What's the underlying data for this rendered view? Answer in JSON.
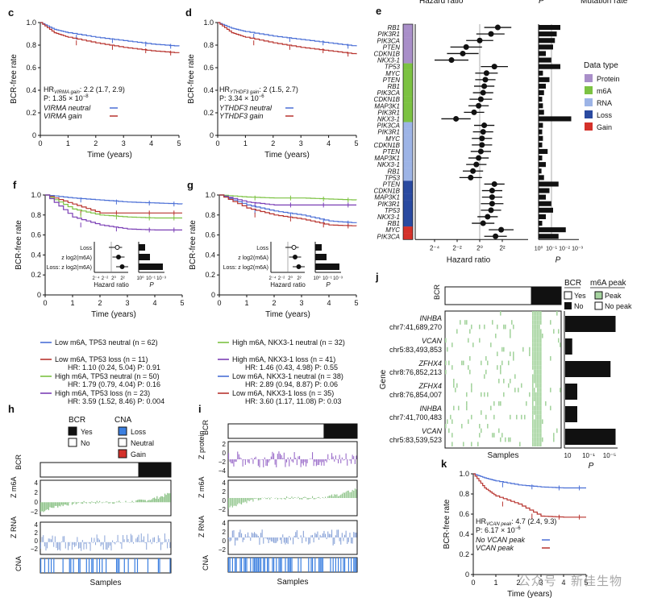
{
  "colors": {
    "blue": "#4a6fd6",
    "red": "#b8342f",
    "green": "#7cc242",
    "purple": "#7b3fb5",
    "lightgreen": "#a6d4a0",
    "lightblue": "#9db4e6",
    "darkblue": "#2a4aa0",
    "pos": "#000000"
  },
  "panels": {
    "c": {
      "label": "c",
      "xlabel": "Time (years)",
      "ylabel": "BCR-free rate",
      "xticks": [
        "0",
        "1",
        "2",
        "3",
        "4",
        "5"
      ],
      "yticks": [
        "1.0",
        "0.8",
        "0.6",
        "0.4",
        "0.2",
        "0"
      ],
      "hr_line": "HR",
      "hr_sub": "VIRMA gain",
      "hr_val": ": 2.2 (1.7, 2.9)",
      "p_line": "P: 1.35 × 10",
      "p_exp": "−8",
      "legend": [
        "VIRMA neutral",
        "VIRMA gain"
      ],
      "chart_data": {
        "type": "line",
        "series": [
          {
            "name": "VIRMA neutral",
            "x": [
              0,
              0.5,
              1,
              2,
              3,
              4,
              5
            ],
            "y": [
              1.0,
              0.94,
              0.91,
              0.87,
              0.84,
              0.81,
              0.79
            ]
          },
          {
            "name": "VIRMA gain",
            "x": [
              0,
              0.5,
              1,
              2,
              3,
              4,
              5
            ],
            "y": [
              1.0,
              0.91,
              0.87,
              0.82,
              0.78,
              0.75,
              0.73
            ]
          }
        ]
      }
    },
    "d": {
      "label": "d",
      "xlabel": "Time (years)",
      "ylabel": "BCR-free rate",
      "xticks": [
        "0",
        "1",
        "2",
        "3",
        "4",
        "5"
      ],
      "yticks": [
        "1.0",
        "0.8",
        "0.6",
        "0.4",
        "0.2",
        "0"
      ],
      "hr_line": "HR",
      "hr_sub": "YTHDF3 gain",
      "hr_val": ": 2 (1.5, 2.7)",
      "p_line": "P: 3.34 × 10",
      "p_exp": "−6",
      "legend": [
        "YTHDF3 neutral",
        "YTHDF3 gain"
      ],
      "chart_data": {
        "type": "line",
        "series": [
          {
            "name": "YTHDF3 neutral",
            "x": [
              0,
              0.5,
              1,
              2,
              3,
              4,
              5
            ],
            "y": [
              1.0,
              0.95,
              0.92,
              0.88,
              0.85,
              0.82,
              0.79
            ]
          },
          {
            "name": "YTHDF3 gain",
            "x": [
              0,
              0.5,
              1,
              2,
              3,
              4,
              5
            ],
            "y": [
              1.0,
              0.91,
              0.87,
              0.82,
              0.78,
              0.75,
              0.72
            ]
          }
        ]
      }
    },
    "f": {
      "label": "f",
      "xlabel": "Time (years)",
      "ylabel": "BCR-free rate",
      "xticks": [
        "0",
        "1",
        "2",
        "3",
        "4",
        "5"
      ],
      "yticks": [
        "1.0",
        "0.8",
        "0.6",
        "0.4",
        "0.2",
        "0"
      ],
      "inset_rows": [
        "Loss",
        "z",
        "Loss: z"
      ],
      "inset_x": "Hazard ratio",
      "inset_p": "P",
      "legend": [
        {
          "t": "Low m6A, TP53 neutral (n = 62)",
          "s": ""
        },
        {
          "t": "Low m6A, TP53 loss (n = 11)",
          "s": "HR: 1.10 (0.24, 5.04) P: 0.91"
        },
        {
          "t": "High m6A, TP53 neutral (n = 50)",
          "s": "HR: 1.79 (0.79, 4.04) P: 0.16"
        },
        {
          "t": "High m6A, TP53 loss (n = 23)",
          "s": "HR: 3.59 (1.52, 8.46) P: 0.004"
        }
      ],
      "chart_data": {
        "type": "line",
        "series": [
          {
            "name": "Low m6A, TP53 neutral",
            "y": [
              1.0,
              0.97,
              0.95,
              0.93,
              0.92,
              0.91
            ]
          },
          {
            "name": "Low m6A, TP53 loss",
            "y": [
              1.0,
              0.91,
              0.82,
              0.82,
              0.82,
              0.82
            ]
          },
          {
            "name": "High m6A, TP53 neutral",
            "y": [
              1.0,
              0.86,
              0.8,
              0.78,
              0.77,
              0.77
            ]
          },
          {
            "name": "High m6A, TP53 loss",
            "y": [
              1.0,
              0.78,
              0.7,
              0.66,
              0.65,
              0.65
            ]
          }
        ]
      }
    },
    "g": {
      "label": "g",
      "xlabel": "Time (years)",
      "ylabel": "BCR-free rate",
      "xticks": [
        "0",
        "1",
        "2",
        "3",
        "4",
        "5"
      ],
      "yticks": [
        "1.0",
        "0.8",
        "0.6",
        "0.4",
        "0.2",
        "0"
      ],
      "inset_rows": [
        "Loss",
        "z",
        "Loss: z"
      ],
      "inset_x": "Hazard ratio",
      "inset_p": "P",
      "legend": [
        {
          "t": "High m6A, NKX3-1 neutral (n = 32)",
          "s": ""
        },
        {
          "t": "High m6A, NKX3-1 loss (n = 41)",
          "s": "HR: 1.46 (0.43, 4.98) P: 0.55"
        },
        {
          "t": "Low m6A, NKX3-1 neutral (n = 38)",
          "s": "HR: 2.89 (0.94, 8.87) P: 0.06"
        },
        {
          "t": "Low m6A, NKX3-1 loss (n = 35)",
          "s": "HR: 3.60 (1.17, 11.08) P: 0.03"
        }
      ],
      "chart_data": {
        "type": "line",
        "series": [
          {
            "name": "High m6A, NKX3-1 neutral",
            "y": [
              1.0,
              0.98,
              0.97,
              0.97,
              0.96,
              0.95
            ]
          },
          {
            "name": "High m6A, NKX3-1 loss",
            "y": [
              1.0,
              0.93,
              0.9,
              0.9,
              0.9,
              0.9
            ]
          },
          {
            "name": "Low m6A, NKX3-1 neutral",
            "y": [
              1.0,
              0.9,
              0.84,
              0.8,
              0.74,
              0.72
            ]
          },
          {
            "name": "Low m6A, NKX3-1 loss",
            "y": [
              1.0,
              0.87,
              0.8,
              0.76,
              0.7,
              0.69
            ]
          }
        ]
      }
    },
    "e": {
      "label": "e",
      "top_left": "Hazard ratio",
      "top_mid": "P",
      "top_right": "Mutation rate",
      "xlabel": "Hazard ratio",
      "plabel": "P",
      "xticks": [
        "2−4",
        "2−2",
        "20",
        "22"
      ],
      "pticks": [
        "10⁰",
        "10⁻¹",
        "10⁻²",
        "10⁻³"
      ],
      "legend_title": "Data type",
      "legend": [
        "Protein",
        "m6A",
        "RNA",
        "Loss",
        "Gain"
      ],
      "genes": [
        "RB1",
        "PIK3R1",
        "PIK3CA",
        "PTEN",
        "CDKN1B",
        "NKX3-1",
        "TP53",
        "MYC",
        "PTEN",
        "RB1",
        "PIK3CA",
        "CDKN1B",
        "MAP3K1",
        "PIK3R1",
        "NKX3-1",
        "PIK3CA",
        "PIK3R1",
        "MYC",
        "CDKN1B",
        "PTEN",
        "MAP3K1",
        "NKX3-1",
        "RB1",
        "TP53",
        "PTEN",
        "CDKN1B",
        "MAP3K1",
        "PIK3R1",
        "TP53",
        "NKX3-1",
        "RB1",
        "MYC",
        "PIK3CA"
      ],
      "group_colors": [
        "#a98fc9",
        "#a98fc9",
        "#a98fc9",
        "#a98fc9",
        "#a98fc9",
        "#a98fc9",
        "#7cc242",
        "#7cc242",
        "#7cc242",
        "#7cc242",
        "#7cc242",
        "#7cc242",
        "#7cc242",
        "#7cc242",
        "#7cc242",
        "#9db4e6",
        "#9db4e6",
        "#9db4e6",
        "#9db4e6",
        "#9db4e6",
        "#9db4e6",
        "#9db4e6",
        "#9db4e6",
        "#9db4e6",
        "#2a4aa0",
        "#2a4aa0",
        "#2a4aa0",
        "#2a4aa0",
        "#2a4aa0",
        "#2a4aa0",
        "#2a4aa0",
        "#d4312a",
        "#d4312a"
      ],
      "chart_data": {
        "type": "scatter",
        "log2_hr": [
          1.6,
          1.0,
          0.0,
          -1.2,
          -1.5,
          -2.5,
          1.3,
          0.6,
          0.5,
          0.4,
          0.3,
          0.1,
          -0.1,
          -0.5,
          -2.1,
          0.4,
          0.3,
          0.2,
          0.2,
          0.1,
          -0.1,
          -0.3,
          -0.6,
          -0.8,
          1.3,
          1.1,
          1.1,
          1.1,
          1.0,
          0.7,
          0.3,
          1.9,
          1.4
        ],
        "ci_low": [
          0.4,
          -0.3,
          -1.2,
          -2.6,
          -2.9,
          -4.0,
          0.1,
          -0.4,
          -0.4,
          -0.5,
          -0.6,
          -0.9,
          -1.0,
          -1.4,
          -3.4,
          -0.5,
          -0.6,
          -0.7,
          -0.7,
          -0.8,
          -1.0,
          -1.2,
          -1.5,
          -1.8,
          0.4,
          0.2,
          0.2,
          0.1,
          0.1,
          -0.2,
          -0.7,
          0.8,
          0.4
        ],
        "ci_high": [
          2.8,
          2.2,
          1.2,
          0.2,
          -0.1,
          -1.0,
          2.5,
          1.6,
          1.4,
          1.3,
          1.2,
          1.1,
          0.8,
          0.4,
          -0.8,
          1.3,
          1.2,
          1.1,
          1.1,
          1.0,
          0.8,
          0.6,
          0.3,
          0.2,
          2.2,
          2.0,
          2.0,
          2.1,
          1.9,
          1.6,
          1.3,
          3.0,
          2.4
        ],
        "mut_rate": [
          0.6,
          0.5,
          0.45,
          0.4,
          0.2,
          0.35,
          0.6,
          0.12,
          0.3,
          0.2,
          0.15,
          0.1,
          0.12,
          0.15,
          0.9,
          0.12,
          0.1,
          0.12,
          0.1,
          0.25,
          0.1,
          0.2,
          0.08,
          0.15,
          0.55,
          0.3,
          0.2,
          0.35,
          0.4,
          0.2,
          0.1,
          0.75,
          0.55
        ]
      }
    },
    "h": {
      "label": "h",
      "bcr_title": "BCR",
      "cna_title": "CNA",
      "bcr_legend": [
        "Yes",
        "No"
      ],
      "cna_legend": [
        "Loss",
        "Neutral",
        "Gain"
      ],
      "row_labels": [
        "BCR",
        "Z m6A",
        "Z RNA",
        "CNA"
      ],
      "xlabel": "Samples",
      "yticks_m6a": [
        "4",
        "2",
        "0",
        "−2"
      ],
      "yticks_rna": [
        "4",
        "2",
        "0",
        "−2"
      ]
    },
    "i": {
      "label": "i",
      "row_labels": [
        "BCR",
        "Z protein",
        "Z m6A",
        "Z RNA",
        "CNA"
      ],
      "xlabel": "Samples",
      "yticks_prot": [
        "2",
        "0",
        "−2",
        "−4"
      ],
      "yticks_m6a": [
        "4",
        "2",
        "0",
        "−2"
      ],
      "yticks_rna": [
        "4",
        "2",
        "0",
        "−2"
      ]
    },
    "j": {
      "label": "j",
      "bcr_header": "BCR",
      "peak_header": "m6A peak",
      "bcr_legend": [
        "Yes",
        "No"
      ],
      "peak_legend": [
        "Peak",
        "No peak"
      ],
      "ylabel": "Gene",
      "xlabel": "Samples",
      "plabel": "P",
      "pticks": [
        "10",
        "10⁻¹",
        "10⁻⁵"
      ],
      "genes": [
        {
          "g": "INHBA",
          "c": "chr7:41,689,270"
        },
        {
          "g": "VCAN",
          "c": "chr5:83,493,853"
        },
        {
          "g": "ZFHX4",
          "c": "chr8:76,852,213"
        },
        {
          "g": "ZFHX4",
          "c": "chr8:76,854,007"
        },
        {
          "g": "INHBA",
          "c": "chr7:41,700,483"
        },
        {
          "g": "VCAN",
          "c": "chr5:83,539,523"
        }
      ],
      "chart_data": {
        "type": "bar",
        "categories": [
          "INHBA chr7:41,689,270",
          "VCAN chr5:83,493,853",
          "ZFHX4 chr8:76,852,213",
          "ZFHX4 chr8:76,854,007",
          "INHBA chr7:41,700,483",
          "VCAN chr5:83,539,523"
        ],
        "neg_log10_p": [
          5.0,
          0.7,
          4.5,
          1.2,
          1.2,
          5.0
        ]
      }
    },
    "k": {
      "label": "k",
      "xlabel": "Time (years)",
      "ylabel": "BCR-free rate",
      "xticks": [
        "0",
        "1",
        "2",
        "3",
        "4",
        "5"
      ],
      "yticks": [
        "1.0",
        "0.8",
        "0.6",
        "0.4",
        "0.2",
        "0"
      ],
      "hr_line": "HR",
      "hr_sub": "VCAN peak",
      "hr_val": ": 4.7 (2.4, 9.3)",
      "p_line": "P: 6.17 × 10",
      "p_exp": "−6",
      "legend": [
        "No VCAN peak",
        "VCAN peak"
      ],
      "chart_data": {
        "type": "line",
        "series": [
          {
            "name": "No VCAN peak",
            "x": [
              0,
              0.5,
              1,
              2,
              3,
              4,
              5
            ],
            "y": [
              1.0,
              0.96,
              0.93,
              0.89,
              0.87,
              0.86,
              0.86
            ]
          },
          {
            "name": "VCAN peak",
            "x": [
              0,
              0.5,
              1,
              2,
              3,
              4,
              5
            ],
            "y": [
              1.0,
              0.86,
              0.78,
              0.7,
              0.58,
              0.57,
              0.57
            ]
          }
        ]
      }
    }
  },
  "watermark": "公众号 · 新佳生物"
}
